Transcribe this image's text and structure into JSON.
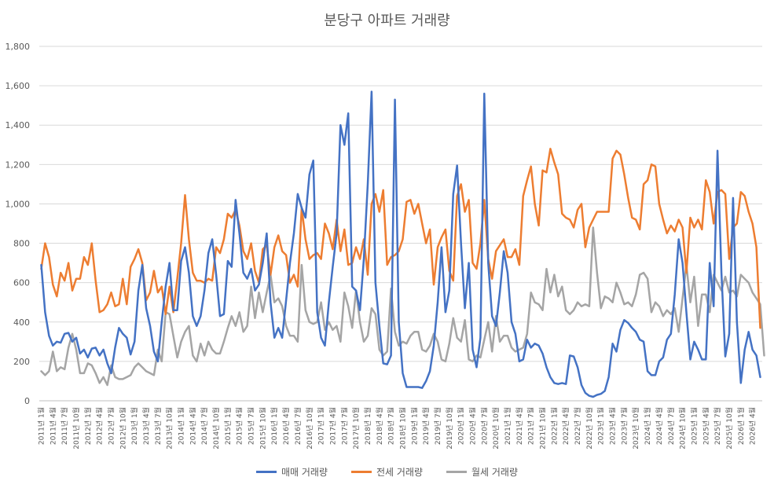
{
  "chart_data": {
    "type": "line",
    "title": "분당구 아파트 거래량",
    "ylim": [
      0,
      1800
    ],
    "yticks": [
      "0",
      "200",
      "400",
      "600",
      "800",
      "1,000",
      "1,200",
      "1,400",
      "1,600",
      "1,800"
    ],
    "grid": true,
    "legend_position": "bottom",
    "x_start": "2011-01",
    "x_end": "2026-04",
    "x_tick_labels": [
      "2011년 1월",
      "2011년 4월",
      "2011년 7월",
      "2011년 10월",
      "2012년 1월",
      "2012년 4월",
      "2012년 7월",
      "2012년 10월",
      "2013년 1월",
      "2013년 4월",
      "2013년 7월",
      "2013년 10월",
      "2014년 1월",
      "2014년 4월",
      "2014년 7월",
      "2014년 10월",
      "2015년 1월",
      "2015년 4월",
      "2015년 7월",
      "2015년 10월",
      "2016년 1월",
      "2016년 4월",
      "2016년 7월",
      "2016년 10월",
      "2017년 1월",
      "2017년 4월",
      "2017년 7월",
      "2017년 10월",
      "2018년 1월",
      "2018년 4월",
      "2018년 7월",
      "2018년 10월",
      "2019년 1월",
      "2019년 4월",
      "2019년 7월",
      "2019년 10월",
      "2020년 1월",
      "2020년 4월",
      "2020년 7월",
      "2020년 10월",
      "2021년 1월",
      "2021년 4월",
      "2021년 7월",
      "2021년 10월",
      "2022년 1월",
      "2022년 4월",
      "2022년 7월",
      "2022년 10월",
      "2023년 1월",
      "2023년 4월",
      "2023년 7월",
      "2023년 10월",
      "2024년 1월",
      "2024년 4월",
      "2024년 7월",
      "2024년 10월",
      "2025년 1월",
      "2025년 4월",
      "2025년 7월",
      "2025년 10월",
      "2026년 1월",
      "2026년 4월"
    ],
    "series": [
      {
        "name": "매매 거래량",
        "color": "#4472C4",
        "values": [
          690,
          450,
          330,
          280,
          300,
          295,
          340,
          345,
          300,
          320,
          240,
          260,
          220,
          265,
          270,
          230,
          260,
          190,
          140,
          270,
          370,
          340,
          320,
          235,
          300,
          560,
          690,
          470,
          380,
          250,
          200,
          400,
          580,
          700,
          460,
          460,
          710,
          780,
          650,
          430,
          380,
          430,
          560,
          750,
          820,
          640,
          430,
          440,
          710,
          680,
          1020,
          850,
          650,
          620,
          670,
          560,
          590,
          700,
          850,
          500,
          320,
          370,
          320,
          510,
          700,
          850,
          1050,
          980,
          930,
          1150,
          1220,
          450,
          320,
          280,
          500,
          680,
          850,
          1400,
          1300,
          1460,
          580,
          560,
          460,
          720,
          1100,
          1570,
          600,
          380,
          190,
          185,
          230,
          1530,
          400,
          140,
          70,
          70,
          70,
          70,
          65,
          100,
          150,
          280,
          500,
          780,
          450,
          560,
          1050,
          1195,
          800,
          470,
          700,
          260,
          170,
          320,
          1560,
          700,
          430,
          380,
          550,
          760,
          650,
          400,
          340,
          200,
          210,
          310,
          270,
          290,
          280,
          240,
          170,
          120,
          90,
          85,
          90,
          85,
          230,
          225,
          170,
          80,
          40,
          25,
          20,
          30,
          35,
          50,
          120,
          290,
          250,
          360,
          410,
          395,
          370,
          350,
          310,
          300,
          150,
          130,
          130,
          200,
          220,
          310,
          340,
          540,
          820,
          700,
          450,
          210,
          300,
          260,
          210,
          210,
          700,
          480,
          1270,
          650,
          225,
          340,
          1030,
          400,
          90,
          260,
          350,
          260,
          230,
          120
        ]
      },
      {
        "name": "전세 거래량",
        "color": "#ED7D31",
        "values": [
          670,
          800,
          730,
          590,
          530,
          650,
          610,
          700,
          560,
          620,
          620,
          730,
          690,
          800,
          610,
          450,
          460,
          490,
          550,
          480,
          490,
          620,
          490,
          680,
          720,
          770,
          700,
          510,
          550,
          660,
          550,
          580,
          440,
          580,
          450,
          620,
          800,
          1045,
          820,
          650,
          610,
          610,
          600,
          620,
          610,
          780,
          750,
          820,
          950,
          930,
          970,
          890,
          760,
          720,
          800,
          660,
          600,
          770,
          790,
          640,
          780,
          840,
          760,
          740,
          600,
          640,
          580,
          980,
          820,
          720,
          740,
          750,
          720,
          900,
          850,
          770,
          920,
          760,
          870,
          690,
          700,
          780,
          720,
          820,
          640,
          1000,
          1050,
          960,
          1070,
          690,
          730,
          740,
          760,
          820,
          1010,
          1020,
          950,
          1000,
          900,
          800,
          870,
          590,
          780,
          830,
          870,
          660,
          610,
          1040,
          1100,
          960,
          1020,
          700,
          670,
          800,
          1020,
          720,
          620,
          760,
          790,
          820,
          730,
          730,
          770,
          690,
          1040,
          1120,
          1190,
          1000,
          890,
          1170,
          1160,
          1280,
          1210,
          1150,
          950,
          930,
          920,
          880,
          970,
          1000,
          780,
          880,
          920,
          960,
          960,
          960,
          960,
          1230,
          1270,
          1250,
          1150,
          1030,
          930,
          920,
          870,
          1100,
          1120,
          1200,
          1190,
          1000,
          920,
          850,
          890,
          860,
          920,
          880,
          650,
          930,
          880,
          920,
          870,
          1120,
          1060,
          900,
          1060,
          1070,
          1050,
          720,
          880,
          900,
          1060,
          1040,
          960,
          900,
          780,
          370
        ]
      },
      {
        "name": "월세 거래량",
        "color": "#A5A5A5",
        "values": [
          150,
          130,
          150,
          250,
          150,
          170,
          160,
          270,
          340,
          260,
          140,
          140,
          190,
          180,
          140,
          90,
          120,
          80,
          180,
          120,
          110,
          110,
          120,
          130,
          170,
          190,
          170,
          150,
          140,
          130,
          260,
          200,
          450,
          440,
          330,
          220,
          300,
          350,
          380,
          230,
          200,
          290,
          230,
          300,
          260,
          240,
          240,
          300,
          370,
          430,
          380,
          450,
          350,
          380,
          580,
          420,
          550,
          450,
          550,
          640,
          500,
          520,
          480,
          380,
          330,
          330,
          300,
          690,
          460,
          400,
          390,
          400,
          500,
          360,
          400,
          360,
          380,
          300,
          550,
          480,
          370,
          560,
          400,
          300,
          330,
          470,
          440,
          260,
          230,
          250,
          570,
          350,
          280,
          300,
          290,
          330,
          350,
          350,
          260,
          250,
          280,
          340,
          300,
          210,
          200,
          290,
          420,
          320,
          300,
          410,
          210,
          200,
          230,
          220,
          310,
          400,
          250,
          430,
          300,
          330,
          330,
          270,
          250,
          260,
          270,
          340,
          550,
          500,
          490,
          460,
          670,
          550,
          640,
          530,
          580,
          460,
          440,
          460,
          500,
          480,
          490,
          480,
          880,
          650,
          470,
          530,
          520,
          500,
          600,
          550,
          490,
          500,
          480,
          540,
          640,
          650,
          620,
          450,
          500,
          480,
          430,
          460,
          440,
          470,
          350,
          520,
          690,
          500,
          630,
          380,
          540,
          540,
          450,
          640,
          600,
          560,
          630,
          550,
          560,
          530,
          640,
          620,
          600,
          550,
          520,
          490,
          230
        ]
      }
    ]
  }
}
